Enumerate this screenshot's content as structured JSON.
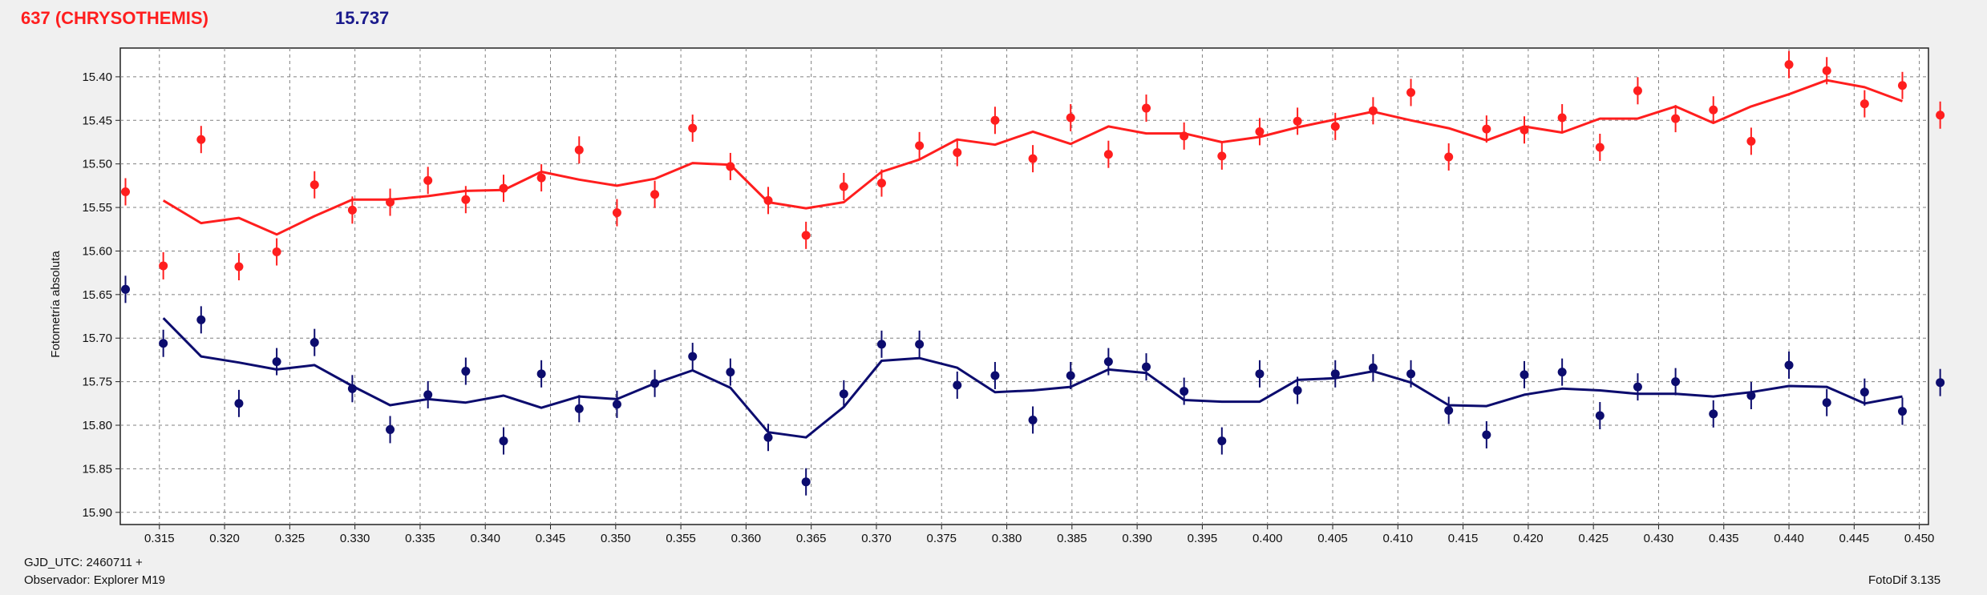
{
  "header": {
    "object_label": "637 (CHRYSOTHEMIS)",
    "reference_value": "15.737"
  },
  "footer": {
    "gjd_label": "GJD_UTC: 2460711 +",
    "observer_label": "Observador: Explorer M19",
    "software_label": "FotoDif 3.135"
  },
  "colors": {
    "object": "#ff1e1e",
    "reference": "#0c0c6e",
    "grid": "#808080",
    "plot_bg": "#ffffff",
    "page_bg": "#f0f0f0"
  },
  "chart_data": {
    "type": "scatter",
    "ylabel": "Fotometría absoluta",
    "xlabel": "",
    "xlim": [
      0.312,
      0.4507
    ],
    "ylim": [
      15.367,
      15.914
    ],
    "y_inverted": true,
    "grid": true,
    "x_ticks": [
      "0.315",
      "0.320",
      "0.325",
      "0.330",
      "0.335",
      "0.340",
      "0.345",
      "0.350",
      "0.355",
      "0.360",
      "0.365",
      "0.370",
      "0.375",
      "0.380",
      "0.385",
      "0.390",
      "0.395",
      "0.400",
      "0.405",
      "0.410",
      "0.415",
      "0.420",
      "0.425",
      "0.430",
      "0.435",
      "0.440",
      "0.445",
      "0.450"
    ],
    "y_ticks": [
      "15.40",
      "15.45",
      "15.50",
      "15.55",
      "15.60",
      "15.65",
      "15.70",
      "15.75",
      "15.80",
      "15.85",
      "15.90"
    ],
    "series": [
      {
        "color": "#ff1e1e",
        "points": [
          [
            0.3124,
            15.532
          ],
          [
            0.3153,
            15.617
          ],
          [
            0.3182,
            15.472
          ],
          [
            0.3211,
            15.618
          ],
          [
            0.324,
            15.601
          ],
          [
            0.3269,
            15.524
          ],
          [
            0.3298,
            15.553
          ],
          [
            0.3327,
            15.544
          ],
          [
            0.3356,
            15.519
          ],
          [
            0.3385,
            15.541
          ],
          [
            0.3414,
            15.528
          ],
          [
            0.3443,
            15.516
          ],
          [
            0.3472,
            15.484
          ],
          [
            0.3501,
            15.556
          ],
          [
            0.353,
            15.535
          ],
          [
            0.3559,
            15.459
          ],
          [
            0.3588,
            15.503
          ],
          [
            0.3617,
            15.542
          ],
          [
            0.3646,
            15.582
          ],
          [
            0.3675,
            15.526
          ],
          [
            0.3704,
            15.522
          ],
          [
            0.3733,
            15.479
          ],
          [
            0.3762,
            15.487
          ],
          [
            0.3791,
            15.45
          ],
          [
            0.382,
            15.494
          ],
          [
            0.3849,
            15.447
          ],
          [
            0.3878,
            15.489
          ],
          [
            0.3907,
            15.436
          ],
          [
            0.3936,
            15.468
          ],
          [
            0.3965,
            15.491
          ],
          [
            0.3994,
            15.463
          ],
          [
            0.4023,
            15.451
          ],
          [
            0.4052,
            15.457
          ],
          [
            0.4081,
            15.439
          ],
          [
            0.411,
            15.418
          ],
          [
            0.4139,
            15.492
          ],
          [
            0.4168,
            15.46
          ],
          [
            0.4197,
            15.461
          ],
          [
            0.4226,
            15.447
          ],
          [
            0.4255,
            15.481
          ],
          [
            0.4284,
            15.416
          ],
          [
            0.4313,
            15.448
          ],
          [
            0.4342,
            15.438
          ],
          [
            0.4371,
            15.474
          ],
          [
            0.44,
            15.386
          ],
          [
            0.4429,
            15.393
          ],
          [
            0.4458,
            15.431
          ],
          [
            0.4487,
            15.41
          ],
          [
            0.4516,
            15.444
          ]
        ],
        "fit": [
          [
            0.3153,
            15.542
          ],
          [
            0.3182,
            15.568
          ],
          [
            0.3211,
            15.562
          ],
          [
            0.324,
            15.581
          ],
          [
            0.3269,
            15.56
          ],
          [
            0.3298,
            15.541
          ],
          [
            0.3327,
            15.541
          ],
          [
            0.3356,
            15.537
          ],
          [
            0.3385,
            15.531
          ],
          [
            0.3414,
            15.53
          ],
          [
            0.3443,
            15.509
          ],
          [
            0.3472,
            15.518
          ],
          [
            0.3501,
            15.525
          ],
          [
            0.353,
            15.517
          ],
          [
            0.3559,
            15.499
          ],
          [
            0.3588,
            15.501
          ],
          [
            0.3617,
            15.544
          ],
          [
            0.3646,
            15.551
          ],
          [
            0.3675,
            15.544
          ],
          [
            0.3704,
            15.509
          ],
          [
            0.3733,
            15.495
          ],
          [
            0.3762,
            15.472
          ],
          [
            0.3791,
            15.478
          ],
          [
            0.382,
            15.463
          ],
          [
            0.3849,
            15.477
          ],
          [
            0.3878,
            15.457
          ],
          [
            0.3907,
            15.465
          ],
          [
            0.3936,
            15.465
          ],
          [
            0.3965,
            15.475
          ],
          [
            0.3994,
            15.469
          ],
          [
            0.4023,
            15.458
          ],
          [
            0.4052,
            15.449
          ],
          [
            0.4081,
            15.44
          ],
          [
            0.411,
            15.45
          ],
          [
            0.4139,
            15.459
          ],
          [
            0.4168,
            15.473
          ],
          [
            0.4197,
            15.457
          ],
          [
            0.4226,
            15.464
          ],
          [
            0.4255,
            15.448
          ],
          [
            0.4284,
            15.448
          ],
          [
            0.4313,
            15.434
          ],
          [
            0.4342,
            15.453
          ],
          [
            0.4371,
            15.434
          ],
          [
            0.44,
            15.42
          ],
          [
            0.4429,
            15.404
          ],
          [
            0.4458,
            15.412
          ],
          [
            0.4487,
            15.428
          ]
        ]
      },
      {
        "color": "#0c0c6e",
        "points": [
          [
            0.3124,
            15.644
          ],
          [
            0.3153,
            15.706
          ],
          [
            0.3182,
            15.679
          ],
          [
            0.3211,
            15.775
          ],
          [
            0.324,
            15.727
          ],
          [
            0.3269,
            15.705
          ],
          [
            0.3298,
            15.758
          ],
          [
            0.3327,
            15.805
          ],
          [
            0.3356,
            15.765
          ],
          [
            0.3385,
            15.738
          ],
          [
            0.3414,
            15.818
          ],
          [
            0.3443,
            15.741
          ],
          [
            0.3472,
            15.781
          ],
          [
            0.3501,
            15.776
          ],
          [
            0.353,
            15.752
          ],
          [
            0.3559,
            15.721
          ],
          [
            0.3588,
            15.739
          ],
          [
            0.3617,
            15.814
          ],
          [
            0.3646,
            15.865
          ],
          [
            0.3675,
            15.764
          ],
          [
            0.3704,
            15.707
          ],
          [
            0.3733,
            15.707
          ],
          [
            0.3762,
            15.754
          ],
          [
            0.3791,
            15.743
          ],
          [
            0.382,
            15.794
          ],
          [
            0.3849,
            15.743
          ],
          [
            0.3878,
            15.727
          ],
          [
            0.3907,
            15.733
          ],
          [
            0.3936,
            15.761
          ],
          [
            0.3965,
            15.818
          ],
          [
            0.3994,
            15.741
          ],
          [
            0.4023,
            15.76
          ],
          [
            0.4052,
            15.741
          ],
          [
            0.4081,
            15.734
          ],
          [
            0.411,
            15.741
          ],
          [
            0.4139,
            15.783
          ],
          [
            0.4168,
            15.811
          ],
          [
            0.4197,
            15.742
          ],
          [
            0.4226,
            15.739
          ],
          [
            0.4255,
            15.789
          ],
          [
            0.4284,
            15.756
          ],
          [
            0.4313,
            15.75
          ],
          [
            0.4342,
            15.787
          ],
          [
            0.4371,
            15.766
          ],
          [
            0.44,
            15.731
          ],
          [
            0.4429,
            15.774
          ],
          [
            0.4458,
            15.762
          ],
          [
            0.4487,
            15.784
          ],
          [
            0.4516,
            15.751
          ]
        ],
        "fit": [
          [
            0.3153,
            15.677
          ],
          [
            0.3182,
            15.721
          ],
          [
            0.3211,
            15.728
          ],
          [
            0.324,
            15.736
          ],
          [
            0.3269,
            15.731
          ],
          [
            0.3298,
            15.755
          ],
          [
            0.3327,
            15.777
          ],
          [
            0.3356,
            15.77
          ],
          [
            0.3385,
            15.774
          ],
          [
            0.3414,
            15.766
          ],
          [
            0.3443,
            15.78
          ],
          [
            0.3472,
            15.767
          ],
          [
            0.3501,
            15.77
          ],
          [
            0.353,
            15.752
          ],
          [
            0.3559,
            15.737
          ],
          [
            0.3588,
            15.757
          ],
          [
            0.3617,
            15.808
          ],
          [
            0.3646,
            15.814
          ],
          [
            0.3675,
            15.779
          ],
          [
            0.3704,
            15.726
          ],
          [
            0.3733,
            15.723
          ],
          [
            0.3762,
            15.734
          ],
          [
            0.3791,
            15.762
          ],
          [
            0.382,
            15.76
          ],
          [
            0.3849,
            15.756
          ],
          [
            0.3878,
            15.736
          ],
          [
            0.3907,
            15.74
          ],
          [
            0.3936,
            15.771
          ],
          [
            0.3965,
            15.773
          ],
          [
            0.3994,
            15.773
          ],
          [
            0.4023,
            15.748
          ],
          [
            0.4052,
            15.746
          ],
          [
            0.4081,
            15.738
          ],
          [
            0.411,
            15.751
          ],
          [
            0.4139,
            15.777
          ],
          [
            0.4168,
            15.778
          ],
          [
            0.4197,
            15.765
          ],
          [
            0.4226,
            15.758
          ],
          [
            0.4255,
            15.76
          ],
          [
            0.4284,
            15.764
          ],
          [
            0.4313,
            15.764
          ],
          [
            0.4342,
            15.767
          ],
          [
            0.4371,
            15.762
          ],
          [
            0.44,
            15.755
          ],
          [
            0.4429,
            15.756
          ],
          [
            0.4458,
            15.775
          ],
          [
            0.4487,
            15.767
          ]
        ]
      }
    ]
  }
}
